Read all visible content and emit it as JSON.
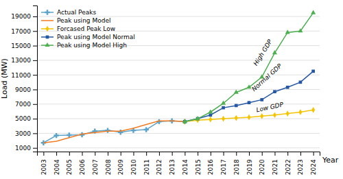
{
  "chart_data": {
    "type": "line",
    "x": [
      2003,
      2004,
      2005,
      2006,
      2007,
      2008,
      2009,
      2010,
      2011,
      2012,
      2013,
      2014,
      2015,
      2016,
      2017,
      2018,
      2019,
      2020,
      2021,
      2022,
      2023,
      2024
    ],
    "series": [
      {
        "name": "Actual Peaks",
        "color": "#5BA3C9",
        "marker": "plus",
        "values": [
          1700,
          2700,
          2750,
          2800,
          3300,
          3400,
          3150,
          3400,
          3500,
          4600,
          4700,
          4600,
          null,
          null,
          null,
          null,
          null,
          null,
          null,
          null,
          null,
          null
        ]
      },
      {
        "name": "Peak using Model",
        "color": "#F47B20",
        "marker": "none",
        "values": [
          1700,
          1900,
          2400,
          2900,
          3100,
          3300,
          3300,
          3700,
          4200,
          4700,
          4700,
          4600,
          null,
          null,
          null,
          null,
          null,
          null,
          null,
          null,
          null,
          null
        ]
      },
      {
        "name": "Forcased Peak Low",
        "color": "#F5C400",
        "marker": "diamond",
        "values": [
          null,
          null,
          null,
          null,
          null,
          null,
          null,
          null,
          null,
          null,
          null,
          4600,
          4800,
          4900,
          5000,
          5100,
          5200,
          5350,
          5500,
          5700,
          5900,
          6200
        ]
      },
      {
        "name": "Peak using Model Normal",
        "color": "#2457A4",
        "marker": "square",
        "values": [
          null,
          null,
          null,
          null,
          null,
          null,
          null,
          null,
          null,
          null,
          null,
          4600,
          5000,
          5500,
          6500,
          6800,
          7200,
          7600,
          8700,
          9300,
          10000,
          11500
        ]
      },
      {
        "name": "Peak using Model High",
        "color": "#4CAF50",
        "marker": "triangle",
        "values": [
          null,
          null,
          null,
          null,
          null,
          null,
          null,
          null,
          null,
          null,
          null,
          4600,
          5000,
          5900,
          7100,
          8600,
          9300,
          10700,
          14000,
          16800,
          17000,
          19500
        ]
      }
    ],
    "xlabel": "Year",
    "ylabel": "Load (MW)",
    "xlim": [
      2002.5,
      2024.5
    ],
    "ylim": [
      500,
      20500
    ],
    "xticks": [
      2003,
      2004,
      2005,
      2006,
      2007,
      2008,
      2009,
      2010,
      2011,
      2012,
      2013,
      2014,
      2015,
      2016,
      2017,
      2018,
      2019,
      2020,
      2021,
      2022,
      2023,
      2024
    ],
    "yticks": [
      1000,
      3000,
      5000,
      7000,
      9000,
      11000,
      13000,
      15000,
      17000,
      19000
    ],
    "grid": true,
    "legend": "upper left",
    "annotations": [
      {
        "text": "High GDP",
        "x": 2019.6,
        "y": 12200
      },
      {
        "text": "Normal GDP",
        "x": 2019.4,
        "y": 8700
      },
      {
        "text": "Low GDP",
        "x": 2019.6,
        "y": 5900
      }
    ]
  }
}
